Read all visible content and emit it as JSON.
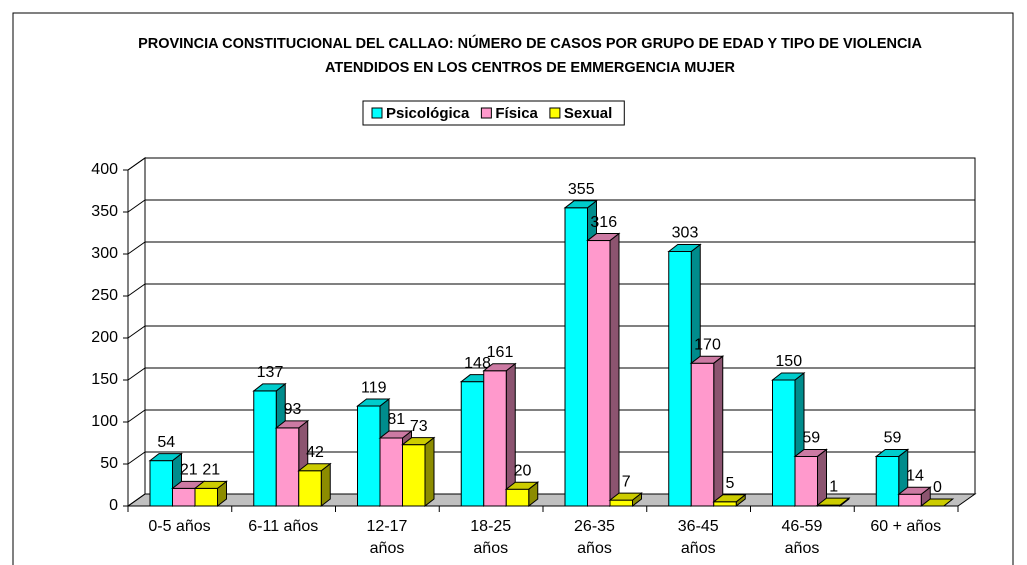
{
  "chart_data": {
    "type": "bar3d",
    "title": "PROVINCIA CONSTITUCIONAL DEL CALLAO: NÚMERO DE CASOS POR GRUPO DE EDAD Y TIPO DE VIOLENCIA ATENDIDOS EN LOS CENTROS DE EMMERGENCIA MUJER",
    "categories": [
      "0-5 años",
      "6-11 años",
      "12-17\naños",
      "18-25\naños",
      "26-35\naños",
      "36-45\naños",
      "46-59\naños",
      "60 + años"
    ],
    "series": [
      {
        "name": "Psicológica",
        "color": "#00ffff",
        "values": [
          54,
          137,
          119,
          148,
          355,
          303,
          150,
          59
        ]
      },
      {
        "name": "Física",
        "color": "#ff99cc",
        "values": [
          21,
          93,
          81,
          161,
          316,
          170,
          59,
          14
        ]
      },
      {
        "name": "Sexual",
        "color": "#ffff00",
        "values": [
          21,
          42,
          73,
          20,
          7,
          5,
          1,
          0
        ]
      }
    ],
    "ylim": [
      0,
      400
    ],
    "yticks": [
      0,
      50,
      100,
      150,
      200,
      250,
      300,
      350,
      400
    ],
    "grid": true,
    "legend": "top"
  }
}
